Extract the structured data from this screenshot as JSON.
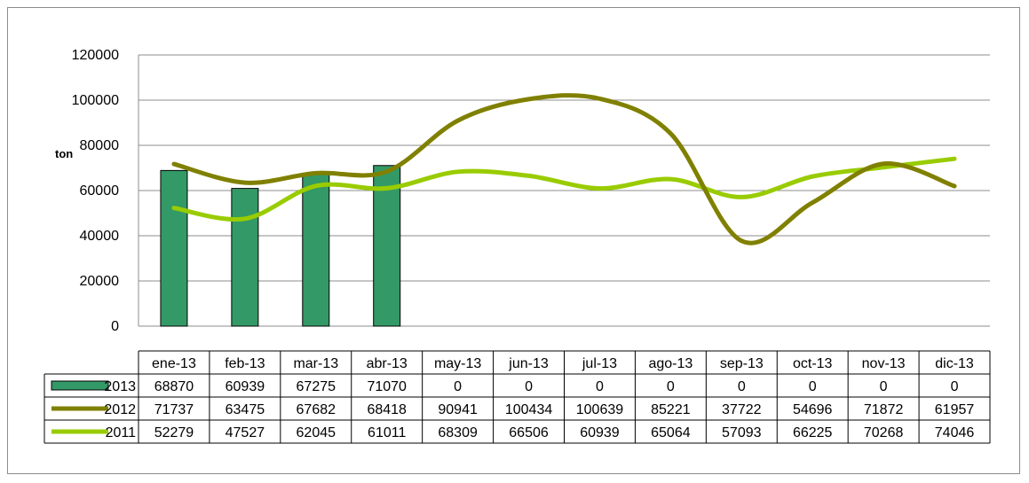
{
  "chart_data": {
    "type": "bar",
    "title": "",
    "ylabel": "ton",
    "ylim": [
      0,
      120000
    ],
    "yticks": [
      0,
      20000,
      40000,
      60000,
      80000,
      100000,
      120000
    ],
    "grid": true,
    "legend": "data-table",
    "categories": [
      "ene-13",
      "feb-13",
      "mar-13",
      "abr-13",
      "may-13",
      "jun-13",
      "jul-13",
      "ago-13",
      "sep-13",
      "oct-13",
      "nov-13",
      "dic-13"
    ],
    "series": [
      {
        "name": "2013",
        "type": "bar",
        "color": "#339966",
        "values": [
          68870,
          60939,
          67275,
          71070,
          0,
          0,
          0,
          0,
          0,
          0,
          0,
          0
        ]
      },
      {
        "name": "2012",
        "type": "line",
        "color": "#808000",
        "values": [
          71737,
          63475,
          67682,
          68418,
          90941,
          100434,
          100639,
          85221,
          37722,
          54696,
          71872,
          61957
        ]
      },
      {
        "name": "2011",
        "type": "line",
        "color": "#99cc00",
        "values": [
          52279,
          47527,
          62045,
          61011,
          68309,
          66506,
          60939,
          65064,
          57093,
          66225,
          70268,
          74046
        ]
      }
    ]
  }
}
